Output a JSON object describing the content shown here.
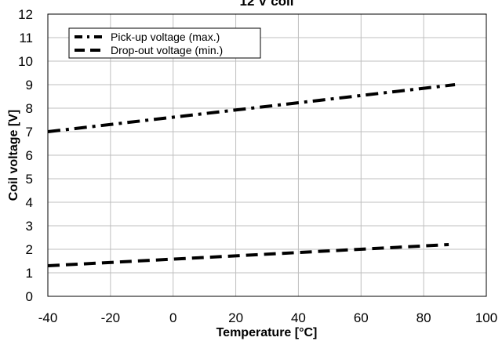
{
  "chart_data": {
    "type": "line",
    "title": "12 V coil",
    "xlabel": "Temperature [°C]",
    "ylabel": "Coil voltage [V]",
    "xlim": [
      -40,
      100
    ],
    "ylim": [
      0,
      12
    ],
    "x_ticks": [
      -40,
      -20,
      0,
      20,
      40,
      60,
      80,
      100
    ],
    "y_ticks": [
      0,
      1,
      2,
      3,
      4,
      5,
      6,
      7,
      8,
      9,
      10,
      11,
      12
    ],
    "grid": true,
    "legend_position": "top-left",
    "series": [
      {
        "name": "Pick-up voltage (max.)",
        "style": "dash-dot",
        "color": "#000000",
        "x": [
          -40,
          90
        ],
        "y": [
          7.0,
          9.0
        ]
      },
      {
        "name": "Drop-out voltage (min.)",
        "style": "dashed",
        "color": "#000000",
        "x": [
          -40,
          88
        ],
        "y": [
          1.3,
          2.2
        ]
      }
    ]
  }
}
